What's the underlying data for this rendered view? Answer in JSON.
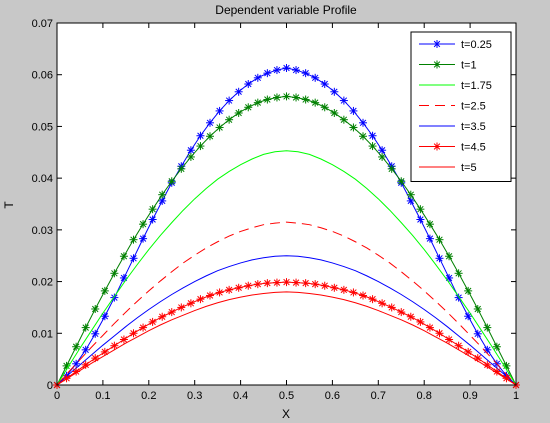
{
  "window": {
    "background_color": "#c8c8c8"
  },
  "chart_data": {
    "type": "line",
    "title": "Dependent variable Profile",
    "xlabel": "X",
    "ylabel": "T",
    "xlim": [
      0,
      1
    ],
    "ylim": [
      0,
      0.07
    ],
    "xticks": [
      "0",
      "0.1",
      "0.2",
      "0.3",
      "0.4",
      "0.5",
      "0.6",
      "0.7",
      "0.8",
      "0.9",
      "1"
    ],
    "yticks": [
      "0",
      "0.01",
      "0.02",
      "0.03",
      "0.04",
      "0.05",
      "0.06",
      "0.07"
    ],
    "grid": false,
    "legend_position": "top-right",
    "series": [
      {
        "name": "t=0.25",
        "color": "#0000ff",
        "line": "solid",
        "marker": "*",
        "x": [
          0,
          0.0208,
          0.0417,
          0.0625,
          0.0833,
          0.1042,
          0.125,
          0.1458,
          0.1667,
          0.1875,
          0.2083,
          0.2292,
          0.25,
          0.2708,
          0.2917,
          0.3125,
          0.3333,
          0.3542,
          0.375,
          0.3958,
          0.4167,
          0.4375,
          0.4583,
          0.4792,
          0.5,
          0.5208,
          0.5417,
          0.5625,
          0.5833,
          0.6042,
          0.625,
          0.6458,
          0.6667,
          0.6875,
          0.7083,
          0.7292,
          0.75,
          0.7708,
          0.7917,
          0.8125,
          0.8333,
          0.8542,
          0.875,
          0.8958,
          0.9167,
          0.9375,
          0.9583,
          0.9792,
          1
        ],
        "y": [
          0,
          0.0018,
          0.0041,
          0.0068,
          0.0099,
          0.0133,
          0.0169,
          0.0207,
          0.0245,
          0.0283,
          0.032,
          0.0356,
          0.0391,
          0.0423,
          0.0454,
          0.0482,
          0.0507,
          0.053,
          0.055,
          0.0567,
          0.0582,
          0.0594,
          0.0603,
          0.0609,
          0.0613,
          0.0609,
          0.0603,
          0.0594,
          0.0582,
          0.0567,
          0.055,
          0.053,
          0.0507,
          0.0482,
          0.0454,
          0.0423,
          0.0391,
          0.0356,
          0.032,
          0.0283,
          0.0245,
          0.0207,
          0.0169,
          0.0133,
          0.0099,
          0.0068,
          0.0041,
          0.0018,
          0
        ]
      },
      {
        "name": "t=1",
        "color": "#008000",
        "line": "solid",
        "marker": "*",
        "x": [
          0,
          0.0208,
          0.0417,
          0.0625,
          0.0833,
          0.1042,
          0.125,
          0.1458,
          0.1667,
          0.1875,
          0.2083,
          0.2292,
          0.25,
          0.2708,
          0.2917,
          0.3125,
          0.3333,
          0.3542,
          0.375,
          0.3958,
          0.4167,
          0.4375,
          0.4583,
          0.4792,
          0.5,
          0.5208,
          0.5417,
          0.5625,
          0.5833,
          0.6042,
          0.625,
          0.6458,
          0.6667,
          0.6875,
          0.7083,
          0.7292,
          0.75,
          0.7708,
          0.7917,
          0.8125,
          0.8333,
          0.8542,
          0.875,
          0.8958,
          0.9167,
          0.9375,
          0.9583,
          0.9792,
          1
        ],
        "y": [
          0,
          0.0037,
          0.0074,
          0.0111,
          0.0147,
          0.0182,
          0.0216,
          0.0249,
          0.0281,
          0.0311,
          0.034,
          0.0368,
          0.0394,
          0.0418,
          0.0441,
          0.0462,
          0.0481,
          0.0498,
          0.0513,
          0.0526,
          0.0537,
          0.0546,
          0.0552,
          0.0556,
          0.0558,
          0.0556,
          0.0552,
          0.0546,
          0.0537,
          0.0526,
          0.0513,
          0.0498,
          0.0481,
          0.0462,
          0.0441,
          0.0418,
          0.0394,
          0.0368,
          0.034,
          0.0311,
          0.0281,
          0.0249,
          0.0216,
          0.0182,
          0.0147,
          0.0111,
          0.0074,
          0.0037,
          0
        ]
      },
      {
        "name": "t=1.75",
        "color": "#00ff00",
        "line": "solid",
        "marker": "none",
        "x": [
          0,
          0.025,
          0.05,
          0.075,
          0.1,
          0.125,
          0.15,
          0.175,
          0.2,
          0.225,
          0.25,
          0.275,
          0.3,
          0.325,
          0.35,
          0.375,
          0.4,
          0.425,
          0.45,
          0.475,
          0.5,
          0.525,
          0.55,
          0.575,
          0.6,
          0.625,
          0.65,
          0.675,
          0.7,
          0.725,
          0.75,
          0.775,
          0.8,
          0.825,
          0.85,
          0.875,
          0.9,
          0.925,
          0.95,
          0.975,
          1
        ],
        "y": [
          0,
          0.0036,
          0.0071,
          0.0105,
          0.0139,
          0.0171,
          0.0203,
          0.0233,
          0.0262,
          0.0289,
          0.0314,
          0.0338,
          0.036,
          0.038,
          0.0398,
          0.0413,
          0.0426,
          0.0437,
          0.0446,
          0.0451,
          0.0453,
          0.0451,
          0.0446,
          0.0437,
          0.0426,
          0.0413,
          0.0398,
          0.038,
          0.036,
          0.0338,
          0.0314,
          0.0289,
          0.0262,
          0.0233,
          0.0203,
          0.0171,
          0.0139,
          0.0105,
          0.0071,
          0.0036,
          0
        ]
      },
      {
        "name": "t=2.5",
        "color": "#ff0000",
        "line": "dashed",
        "marker": "none",
        "x": [
          0,
          0.025,
          0.05,
          0.075,
          0.1,
          0.125,
          0.15,
          0.175,
          0.2,
          0.225,
          0.25,
          0.275,
          0.3,
          0.325,
          0.35,
          0.375,
          0.4,
          0.425,
          0.45,
          0.475,
          0.5,
          0.525,
          0.55,
          0.575,
          0.6,
          0.625,
          0.65,
          0.675,
          0.7,
          0.725,
          0.75,
          0.775,
          0.8,
          0.825,
          0.85,
          0.875,
          0.9,
          0.925,
          0.95,
          0.975,
          1
        ],
        "y": [
          0,
          0.0025,
          0.0049,
          0.0073,
          0.0096,
          0.0119,
          0.0141,
          0.0162,
          0.0182,
          0.0201,
          0.0219,
          0.0236,
          0.0251,
          0.0265,
          0.0277,
          0.0288,
          0.0297,
          0.0304,
          0.031,
          0.0313,
          0.0315,
          0.0313,
          0.031,
          0.0304,
          0.0297,
          0.0288,
          0.0277,
          0.0265,
          0.0251,
          0.0236,
          0.0219,
          0.0201,
          0.0182,
          0.0162,
          0.0141,
          0.0119,
          0.0096,
          0.0073,
          0.0049,
          0.0025,
          0
        ]
      },
      {
        "name": "t=3.5",
        "color": "#0000ff",
        "line": "solid",
        "marker": "none",
        "x": [
          0,
          0.025,
          0.05,
          0.075,
          0.1,
          0.125,
          0.15,
          0.175,
          0.2,
          0.225,
          0.25,
          0.275,
          0.3,
          0.325,
          0.35,
          0.375,
          0.4,
          0.425,
          0.45,
          0.475,
          0.5,
          0.525,
          0.55,
          0.575,
          0.6,
          0.625,
          0.65,
          0.675,
          0.7,
          0.725,
          0.75,
          0.775,
          0.8,
          0.825,
          0.85,
          0.875,
          0.9,
          0.925,
          0.95,
          0.975,
          1
        ],
        "y": [
          0,
          0.002,
          0.0039,
          0.0058,
          0.0077,
          0.0095,
          0.0113,
          0.013,
          0.0146,
          0.0161,
          0.0175,
          0.0188,
          0.02,
          0.0211,
          0.0221,
          0.0229,
          0.0236,
          0.0242,
          0.0246,
          0.0249,
          0.025,
          0.0249,
          0.0246,
          0.0242,
          0.0236,
          0.0229,
          0.0221,
          0.0211,
          0.02,
          0.0188,
          0.0175,
          0.0161,
          0.0146,
          0.013,
          0.0113,
          0.0095,
          0.0077,
          0.0058,
          0.0039,
          0.002,
          0
        ]
      },
      {
        "name": "t=4.5",
        "color": "#ff0000",
        "line": "solid",
        "marker": "*",
        "x": [
          0,
          0.0208,
          0.0417,
          0.0625,
          0.0833,
          0.1042,
          0.125,
          0.1458,
          0.1667,
          0.1875,
          0.2083,
          0.2292,
          0.25,
          0.2708,
          0.2917,
          0.3125,
          0.3333,
          0.3542,
          0.375,
          0.3958,
          0.4167,
          0.4375,
          0.4583,
          0.4792,
          0.5,
          0.5208,
          0.5417,
          0.5625,
          0.5833,
          0.6042,
          0.625,
          0.6458,
          0.6667,
          0.6875,
          0.7083,
          0.7292,
          0.75,
          0.7708,
          0.7917,
          0.8125,
          0.8333,
          0.8542,
          0.875,
          0.8958,
          0.9167,
          0.9375,
          0.9583,
          0.9792,
          1
        ],
        "y": [
          0,
          0.0013,
          0.0026,
          0.0039,
          0.0052,
          0.0064,
          0.0076,
          0.0088,
          0.01,
          0.0111,
          0.0122,
          0.0132,
          0.0141,
          0.015,
          0.0158,
          0.0166,
          0.0173,
          0.0179,
          0.0184,
          0.0188,
          0.0192,
          0.0195,
          0.0197,
          0.0198,
          0.0199,
          0.0198,
          0.0197,
          0.0195,
          0.0192,
          0.0188,
          0.0184,
          0.0179,
          0.0173,
          0.0166,
          0.0158,
          0.015,
          0.0141,
          0.0132,
          0.0122,
          0.0111,
          0.01,
          0.0088,
          0.0076,
          0.0064,
          0.0052,
          0.0039,
          0.0026,
          0.0013,
          0
        ]
      },
      {
        "name": "t=5",
        "color": "#ff0000",
        "line": "solid",
        "marker": "none",
        "x": [
          0,
          0.025,
          0.05,
          0.075,
          0.1,
          0.125,
          0.15,
          0.175,
          0.2,
          0.225,
          0.25,
          0.275,
          0.3,
          0.325,
          0.35,
          0.375,
          0.4,
          0.425,
          0.45,
          0.475,
          0.5,
          0.525,
          0.55,
          0.575,
          0.6,
          0.625,
          0.65,
          0.675,
          0.7,
          0.725,
          0.75,
          0.775,
          0.8,
          0.825,
          0.85,
          0.875,
          0.9,
          0.925,
          0.95,
          0.975,
          1
        ],
        "y": [
          0,
          0.0014,
          0.0028,
          0.0042,
          0.0055,
          0.0068,
          0.0081,
          0.0093,
          0.0105,
          0.0116,
          0.0126,
          0.0135,
          0.0144,
          0.0152,
          0.0159,
          0.0165,
          0.017,
          0.0174,
          0.0177,
          0.0179,
          0.018,
          0.0179,
          0.0177,
          0.0174,
          0.017,
          0.0165,
          0.0159,
          0.0152,
          0.0144,
          0.0135,
          0.0126,
          0.0116,
          0.0105,
          0.0093,
          0.0081,
          0.0068,
          0.0055,
          0.0042,
          0.0028,
          0.0014,
          0
        ]
      }
    ]
  }
}
